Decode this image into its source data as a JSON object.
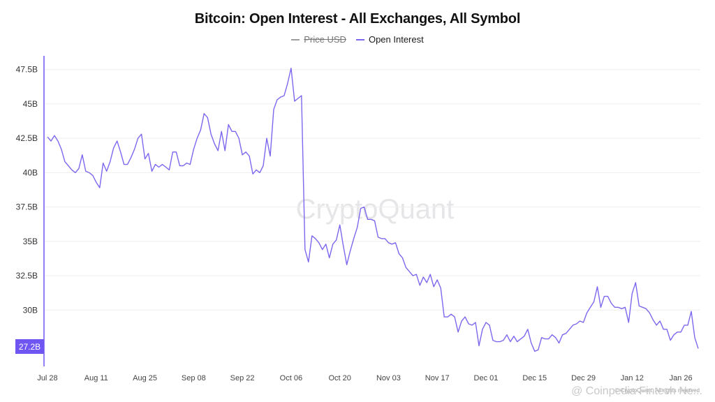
{
  "colors": {
    "open_interest": "#7b68ee",
    "price": "#9e9e9e",
    "axis": "#6f55f2",
    "badge_bg": "#6f55f2",
    "badge_text": "#ffffff",
    "watermark": "#e6e6e9"
  },
  "watermark": "CryptoQuant",
  "footer": {
    "copyright": "© CryptoQuant. All rights reserved",
    "source": "@ Coinpedia Fintech Ne..."
  },
  "chart_data": {
    "type": "line",
    "title": "Bitcoin: Open Interest - All Exchanges, All Symbol",
    "legend": [
      {
        "name": "Price USD",
        "hidden": true
      },
      {
        "name": "Open Interest",
        "hidden": false
      }
    ],
    "y_ticks": [
      {
        "value": 30,
        "label": "30B"
      },
      {
        "value": 32.5,
        "label": "32.5B"
      },
      {
        "value": 35,
        "label": "35B"
      },
      {
        "value": 37.5,
        "label": "37.5B"
      },
      {
        "value": 40,
        "label": "40B"
      },
      {
        "value": 42.5,
        "label": "42.5B"
      },
      {
        "value": 45,
        "label": "45B"
      },
      {
        "value": 47.5,
        "label": "47.5B"
      }
    ],
    "ylim": [
      25.9,
      48.5
    ],
    "x_range": [
      "2025-07-28",
      "2026-01-31"
    ],
    "x_ticks": [
      {
        "date": "2025-07-28",
        "label": "Jul 28"
      },
      {
        "date": "2025-08-11",
        "label": "Aug 11"
      },
      {
        "date": "2025-08-25",
        "label": "Aug 25"
      },
      {
        "date": "2025-09-08",
        "label": "Sep 08"
      },
      {
        "date": "2025-09-22",
        "label": "Sep 22"
      },
      {
        "date": "2025-10-06",
        "label": "Oct 06"
      },
      {
        "date": "2025-10-20",
        "label": "Oct 20"
      },
      {
        "date": "2025-11-03",
        "label": "Nov 03"
      },
      {
        "date": "2025-11-17",
        "label": "Nov 17"
      },
      {
        "date": "2025-12-01",
        "label": "Dec 01"
      },
      {
        "date": "2025-12-15",
        "label": "Dec 15"
      },
      {
        "date": "2025-12-29",
        "label": "Dec 29"
      },
      {
        "date": "2026-01-12",
        "label": "Jan 12"
      },
      {
        "date": "2026-01-26",
        "label": "Jan 26"
      }
    ],
    "last_value_label": "27.2B",
    "series": [
      {
        "name": "Open Interest",
        "unit": "B",
        "x": [
          "2025-07-28",
          "2025-07-29",
          "2025-07-30",
          "2025-07-31",
          "2025-08-01",
          "2025-08-02",
          "2025-08-03",
          "2025-08-04",
          "2025-08-05",
          "2025-08-06",
          "2025-08-07",
          "2025-08-08",
          "2025-08-09",
          "2025-08-10",
          "2025-08-11",
          "2025-08-12",
          "2025-08-13",
          "2025-08-14",
          "2025-08-15",
          "2025-08-16",
          "2025-08-17",
          "2025-08-18",
          "2025-08-19",
          "2025-08-20",
          "2025-08-21",
          "2025-08-22",
          "2025-08-23",
          "2025-08-24",
          "2025-08-25",
          "2025-08-26",
          "2025-08-27",
          "2025-08-28",
          "2025-08-29",
          "2025-08-30",
          "2025-08-31",
          "2025-09-01",
          "2025-09-02",
          "2025-09-03",
          "2025-09-04",
          "2025-09-05",
          "2025-09-06",
          "2025-09-07",
          "2025-09-08",
          "2025-09-09",
          "2025-09-10",
          "2025-09-11",
          "2025-09-12",
          "2025-09-13",
          "2025-09-14",
          "2025-09-15",
          "2025-09-16",
          "2025-09-17",
          "2025-09-18",
          "2025-09-19",
          "2025-09-20",
          "2025-09-21",
          "2025-09-22",
          "2025-09-23",
          "2025-09-24",
          "2025-09-25",
          "2025-09-26",
          "2025-09-27",
          "2025-09-28",
          "2025-09-29",
          "2025-09-30",
          "2025-10-01",
          "2025-10-02",
          "2025-10-03",
          "2025-10-04",
          "2025-10-05",
          "2025-10-06",
          "2025-10-07",
          "2025-10-08",
          "2025-10-09",
          "2025-10-10",
          "2025-10-11",
          "2025-10-12",
          "2025-10-13",
          "2025-10-14",
          "2025-10-15",
          "2025-10-16",
          "2025-10-17",
          "2025-10-18",
          "2025-10-19",
          "2025-10-20",
          "2025-10-21",
          "2025-10-22",
          "2025-10-23",
          "2025-10-24",
          "2025-10-25",
          "2025-10-26",
          "2025-10-27",
          "2025-10-28",
          "2025-10-29",
          "2025-10-30",
          "2025-10-31",
          "2025-11-01",
          "2025-11-02",
          "2025-11-03",
          "2025-11-04",
          "2025-11-05",
          "2025-11-06",
          "2025-11-07",
          "2025-11-08",
          "2025-11-09",
          "2025-11-10",
          "2025-11-11",
          "2025-11-12",
          "2025-11-13",
          "2025-11-14",
          "2025-11-15",
          "2025-11-16",
          "2025-11-17",
          "2025-11-18",
          "2025-11-19",
          "2025-11-20",
          "2025-11-21",
          "2025-11-22",
          "2025-11-23",
          "2025-11-24",
          "2025-11-25",
          "2025-11-26",
          "2025-11-27",
          "2025-11-28",
          "2025-11-29",
          "2025-11-30",
          "2025-12-01",
          "2025-12-02",
          "2025-12-03",
          "2025-12-04",
          "2025-12-05",
          "2025-12-06",
          "2025-12-07",
          "2025-12-08",
          "2025-12-09",
          "2025-12-10",
          "2025-12-11",
          "2025-12-12",
          "2025-12-13",
          "2025-12-14",
          "2025-12-15",
          "2025-12-16",
          "2025-12-17",
          "2025-12-18",
          "2025-12-19",
          "2025-12-20",
          "2025-12-21",
          "2025-12-22",
          "2025-12-23",
          "2025-12-24",
          "2025-12-25",
          "2025-12-26",
          "2025-12-27",
          "2025-12-28",
          "2025-12-29",
          "2025-12-30",
          "2025-12-31",
          "2026-01-01",
          "2026-01-02",
          "2026-01-03",
          "2026-01-04",
          "2026-01-05",
          "2026-01-06",
          "2026-01-07",
          "2026-01-08",
          "2026-01-09",
          "2026-01-10",
          "2026-01-11",
          "2026-01-12",
          "2026-01-13",
          "2026-01-14",
          "2026-01-15",
          "2026-01-16",
          "2026-01-17",
          "2026-01-18",
          "2026-01-19",
          "2026-01-20",
          "2026-01-21",
          "2026-01-22",
          "2026-01-23",
          "2026-01-24",
          "2026-01-25",
          "2026-01-26",
          "2026-01-27",
          "2026-01-28",
          "2026-01-29",
          "2026-01-30",
          "2026-01-31"
        ],
        "y": [
          42.6,
          42.3,
          42.7,
          42.3,
          41.7,
          40.8,
          40.5,
          40.2,
          40.0,
          40.3,
          41.3,
          40.1,
          40.0,
          39.8,
          39.3,
          38.9,
          40.7,
          40.1,
          40.8,
          41.8,
          42.3,
          41.5,
          40.6,
          40.6,
          41.1,
          41.7,
          42.5,
          42.8,
          41.0,
          41.4,
          40.1,
          40.6,
          40.4,
          40.6,
          40.4,
          40.2,
          41.5,
          41.5,
          40.5,
          40.5,
          40.7,
          40.6,
          41.7,
          42.5,
          43.1,
          44.3,
          44.0,
          42.8,
          42.1,
          41.6,
          43.0,
          41.6,
          43.5,
          43.0,
          43.0,
          42.5,
          41.3,
          41.5,
          41.2,
          39.9,
          40.2,
          40.0,
          40.5,
          42.5,
          41.2,
          44.6,
          45.3,
          45.5,
          45.6,
          46.5,
          47.6,
          45.2,
          45.4,
          45.6,
          34.4,
          33.5,
          35.4,
          35.2,
          34.9,
          34.4,
          34.8,
          33.8,
          34.8,
          35.1,
          36.2,
          34.7,
          33.3,
          34.3,
          35.2,
          36.0,
          37.4,
          37.5,
          36.6,
          36.6,
          36.5,
          35.3,
          35.2,
          35.2,
          34.9,
          34.8,
          34.9,
          34.1,
          33.8,
          33.1,
          32.8,
          32.5,
          32.6,
          31.8,
          32.4,
          32.0,
          32.6,
          31.7,
          32.2,
          31.6,
          29.5,
          29.5,
          29.7,
          29.5,
          28.4,
          29.2,
          29.5,
          29.0,
          28.9,
          29.1,
          27.4,
          28.6,
          29.1,
          28.9,
          27.8,
          27.7,
          27.7,
          27.8,
          28.2,
          27.7,
          28.1,
          27.7,
          27.9,
          28.1,
          28.6,
          27.6,
          27.0,
          27.1,
          28.0,
          27.9,
          27.9,
          28.2,
          28.0,
          27.6,
          28.2,
          28.3,
          28.6,
          28.9,
          29.0,
          29.2,
          29.1,
          29.8,
          30.2,
          30.6,
          31.7,
          30.2,
          31.0,
          31.0,
          30.5,
          30.2,
          30.2,
          30.1,
          30.2,
          29.1,
          31.2,
          32.0,
          30.3,
          30.2,
          30.1,
          29.8,
          29.3,
          28.9,
          29.2,
          28.6,
          28.6,
          27.8,
          28.2,
          28.4,
          28.4,
          28.9,
          28.9,
          29.9,
          28.0,
          27.2
        ]
      }
    ]
  }
}
